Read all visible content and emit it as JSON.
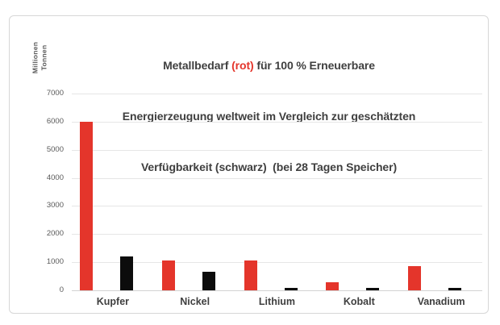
{
  "title": {
    "line1_pre": "Metallbedarf ",
    "line1_highlight": "(rot)",
    "line1_post": " für 100 % Erneuerbare",
    "line2": "Energierzeugung weltweit im Vergleich zur geschätzten",
    "line3": "Verfügbarkeit (schwarz)  (bei 28 Tagen Speicher)"
  },
  "chart_data": {
    "type": "bar",
    "categories": [
      "Kupfer",
      "Nickel",
      "Lithium",
      "Kobalt",
      "Vanadium"
    ],
    "series": [
      {
        "name": "Metallbedarf",
        "color_label": "rot",
        "color": "#e4352b",
        "values": [
          6000,
          1050,
          1050,
          280,
          850
        ]
      },
      {
        "name": "Verfügbarkeit",
        "color_label": "schwarz",
        "color": "#0c0c0c",
        "values": [
          1200,
          650,
          100,
          80,
          100
        ]
      }
    ],
    "ylabel_line1": "Millionen",
    "ylabel_line2": "Tonnen",
    "yticks": [
      0,
      1000,
      2000,
      3000,
      4000,
      5000,
      6000,
      7000
    ],
    "ylim": [
      0,
      7000
    ],
    "grid": true,
    "legend": "none"
  },
  "colors": {
    "bar_red": "#e4352b",
    "bar_black": "#0c0c0c",
    "title_text": "#3f3f3f",
    "axis_text": "#595959",
    "gridline": "#e6e6e6",
    "card_border": "#d7d7d7"
  }
}
